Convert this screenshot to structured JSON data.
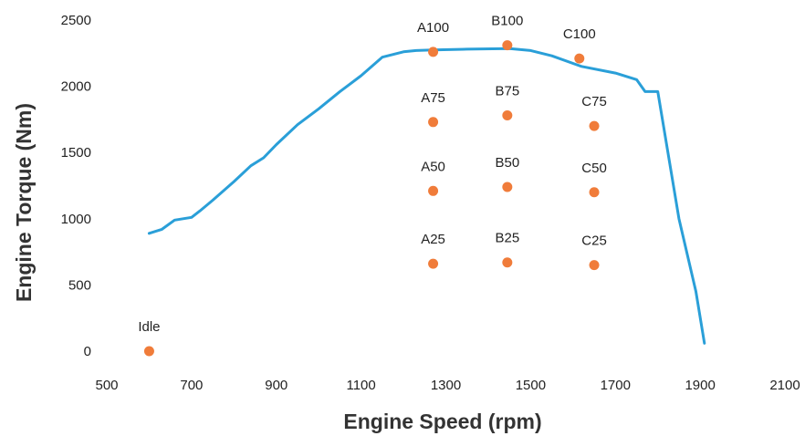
{
  "chart_data": {
    "type": "line",
    "title": "",
    "xlabel": "Engine Speed (rpm)",
    "ylabel": "Engine Torque (Nm)",
    "xlim": [
      500,
      2100
    ],
    "ylim": [
      0,
      2500
    ],
    "xticks": [
      500,
      700,
      900,
      1100,
      1300,
      1500,
      1700,
      1900,
      2100
    ],
    "yticks": [
      0,
      500,
      1000,
      1500,
      2000,
      2500
    ],
    "grid": false,
    "legend": "none",
    "series": [
      {
        "type": "line",
        "color": "#2a9fd8",
        "x": [
          600,
          630,
          660,
          700,
          720,
          750,
          800,
          840,
          870,
          900,
          950,
          1000,
          1050,
          1100,
          1150,
          1200,
          1230,
          1270,
          1350,
          1450,
          1500,
          1550,
          1620,
          1700,
          1750,
          1770,
          1800,
          1850,
          1890,
          1910
        ],
        "y": [
          890,
          920,
          990,
          1010,
          1060,
          1140,
          1280,
          1400,
          1460,
          1560,
          1710,
          1830,
          1960,
          2080,
          2220,
          2260,
          2270,
          2275,
          2280,
          2285,
          2270,
          2230,
          2150,
          2100,
          2050,
          1960,
          1960,
          1000,
          450,
          60
        ]
      },
      {
        "type": "scatter",
        "color": "#f07c3a",
        "points": [
          {
            "label": "Idle",
            "x": 600,
            "y": 0
          },
          {
            "label": "A25",
            "x": 1270,
            "y": 660
          },
          {
            "label": "A50",
            "x": 1270,
            "y": 1210
          },
          {
            "label": "A75",
            "x": 1270,
            "y": 1730
          },
          {
            "label": "A100",
            "x": 1270,
            "y": 2260
          },
          {
            "label": "B25",
            "x": 1445,
            "y": 670
          },
          {
            "label": "B50",
            "x": 1445,
            "y": 1240
          },
          {
            "label": "B75",
            "x": 1445,
            "y": 1780
          },
          {
            "label": "B100",
            "x": 1445,
            "y": 2310
          },
          {
            "label": "C25",
            "x": 1650,
            "y": 650
          },
          {
            "label": "C50",
            "x": 1650,
            "y": 1200
          },
          {
            "label": "C75",
            "x": 1650,
            "y": 1700
          },
          {
            "label": "C100",
            "x": 1615,
            "y": 2210
          }
        ]
      }
    ]
  }
}
